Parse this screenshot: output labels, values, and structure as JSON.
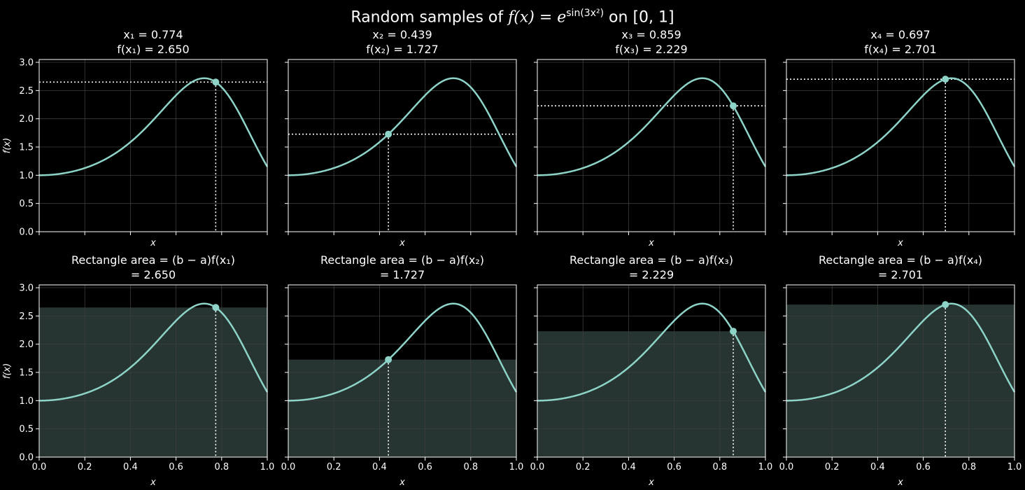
{
  "chart_data": {
    "type": "line",
    "suptitle_parts": {
      "prefix": "Random samples of ",
      "func": "f(x) = e",
      "exponent": "sin(3x²)",
      "suffix": " on [0, 1]"
    },
    "function": "exp(sin(3*x^2))",
    "xlim": [
      0,
      1
    ],
    "ylim": [
      0,
      3.05
    ],
    "xticks": [
      0.0,
      0.2,
      0.4,
      0.6,
      0.8,
      1.0
    ],
    "xtick_labels": [
      "0.0",
      "0.2",
      "0.4",
      "0.6",
      "0.8",
      "1.0"
    ],
    "yticks": [
      0.0,
      0.5,
      1.0,
      1.5,
      2.0,
      2.5,
      3.0
    ],
    "ytick_labels": [
      "0.0",
      "0.5",
      "1.0",
      "1.5",
      "2.0",
      "2.5",
      "3.0"
    ],
    "xlabel": "x",
    "ylabel": "f(x)",
    "grid": true,
    "colors": {
      "curve": "#8dd3c7",
      "fill": "#263532",
      "guide": "#ffffff",
      "grid": "#3d3d3d",
      "spine": "#ffffff"
    },
    "samples": [
      {
        "i": 1,
        "x": 0.774,
        "fx": 2.65,
        "title_x": "x₁ = 0.774",
        "title_fx": "f(x₁) = 2.650",
        "area_title": "Rectangle area = (b − a)f(x₁)",
        "area_value": "= 2.650"
      },
      {
        "i": 2,
        "x": 0.439,
        "fx": 1.727,
        "title_x": "x₂ = 0.439",
        "title_fx": "f(x₂) = 1.727",
        "area_title": "Rectangle area = (b − a)f(x₂)",
        "area_value": "= 1.727"
      },
      {
        "i": 3,
        "x": 0.859,
        "fx": 2.229,
        "title_x": "x₃ = 0.859",
        "title_fx": "f(x₃) = 2.229",
        "area_title": "Rectangle area = (b − a)f(x₃)",
        "area_value": "= 2.229"
      },
      {
        "i": 4,
        "x": 0.697,
        "fx": 2.701,
        "title_x": "x₄ = 0.697",
        "title_fx": "f(x₄) = 2.701",
        "area_title": "Rectangle area = (b − a)f(x₄)",
        "area_value": "= 2.701"
      }
    ]
  }
}
